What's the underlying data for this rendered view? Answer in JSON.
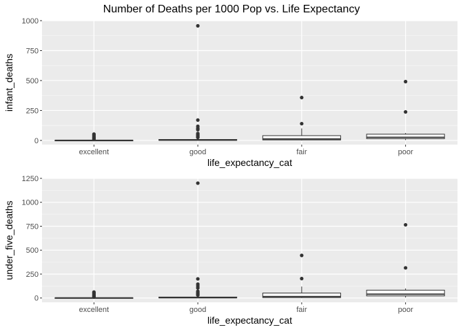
{
  "title": "Number of Deaths per 1000 Pop vs. Life Expectancy",
  "colors": {
    "panel": "#ebebeb",
    "grid_major": "#ffffff",
    "grid_minor": "#f5f5f5",
    "box_fill": "#ffffff",
    "box_line": "#333333",
    "outlier": "#333333",
    "text_axis": "#4d4d4d",
    "text_label": "#000000"
  },
  "chart_data": [
    {
      "type": "boxplot",
      "xlabel": "life_expectancy_cat",
      "ylabel": "infant_deaths",
      "categories": [
        "excellent",
        "good",
        "fair",
        "poor"
      ],
      "ylim": [
        -35,
        1000
      ],
      "yticks": [
        0,
        250,
        500,
        750,
        1000
      ],
      "grid": true,
      "boxes": [
        {
          "category": "excellent",
          "min": 0,
          "q1": 0,
          "median": 1,
          "q3": 2,
          "max": 4,
          "outliers": [
            8,
            14,
            20,
            27,
            35,
            45,
            53
          ]
        },
        {
          "category": "good",
          "min": 0,
          "q1": 1,
          "median": 3,
          "q3": 8,
          "max": 18,
          "outliers": [
            25,
            32,
            40,
            48,
            58,
            90,
            102,
            118,
            170,
            957
          ]
        },
        {
          "category": "fair",
          "min": 0,
          "q1": 4,
          "median": 12,
          "q3": 40,
          "max": 100,
          "outliers": [
            140,
            358
          ]
        },
        {
          "category": "poor",
          "min": 3,
          "q1": 15,
          "median": 26,
          "q3": 52,
          "max": 62,
          "outliers": [
            238,
            491
          ]
        }
      ]
    },
    {
      "type": "boxplot",
      "xlabel": "life_expectancy_cat",
      "ylabel": "under_five_deaths",
      "categories": [
        "excellent",
        "good",
        "fair",
        "poor"
      ],
      "ylim": [
        -45,
        1250
      ],
      "yticks": [
        0,
        250,
        500,
        750,
        1000,
        1250
      ],
      "grid": true,
      "boxes": [
        {
          "category": "excellent",
          "min": 0,
          "q1": 0,
          "median": 1,
          "q3": 3,
          "max": 5,
          "outliers": [
            10,
            17,
            24,
            32,
            42,
            52,
            62
          ]
        },
        {
          "category": "good",
          "min": 0,
          "q1": 1,
          "median": 4,
          "q3": 10,
          "max": 22,
          "outliers": [
            30,
            38,
            48,
            58,
            70,
            105,
            125,
            145,
            200,
            1200
          ]
        },
        {
          "category": "fair",
          "min": 0,
          "q1": 5,
          "median": 15,
          "q3": 52,
          "max": 120,
          "outliers": [
            203,
            445
          ]
        },
        {
          "category": "poor",
          "min": 5,
          "q1": 22,
          "median": 40,
          "q3": 82,
          "max": 100,
          "outliers": [
            315,
            765
          ]
        }
      ]
    }
  ]
}
